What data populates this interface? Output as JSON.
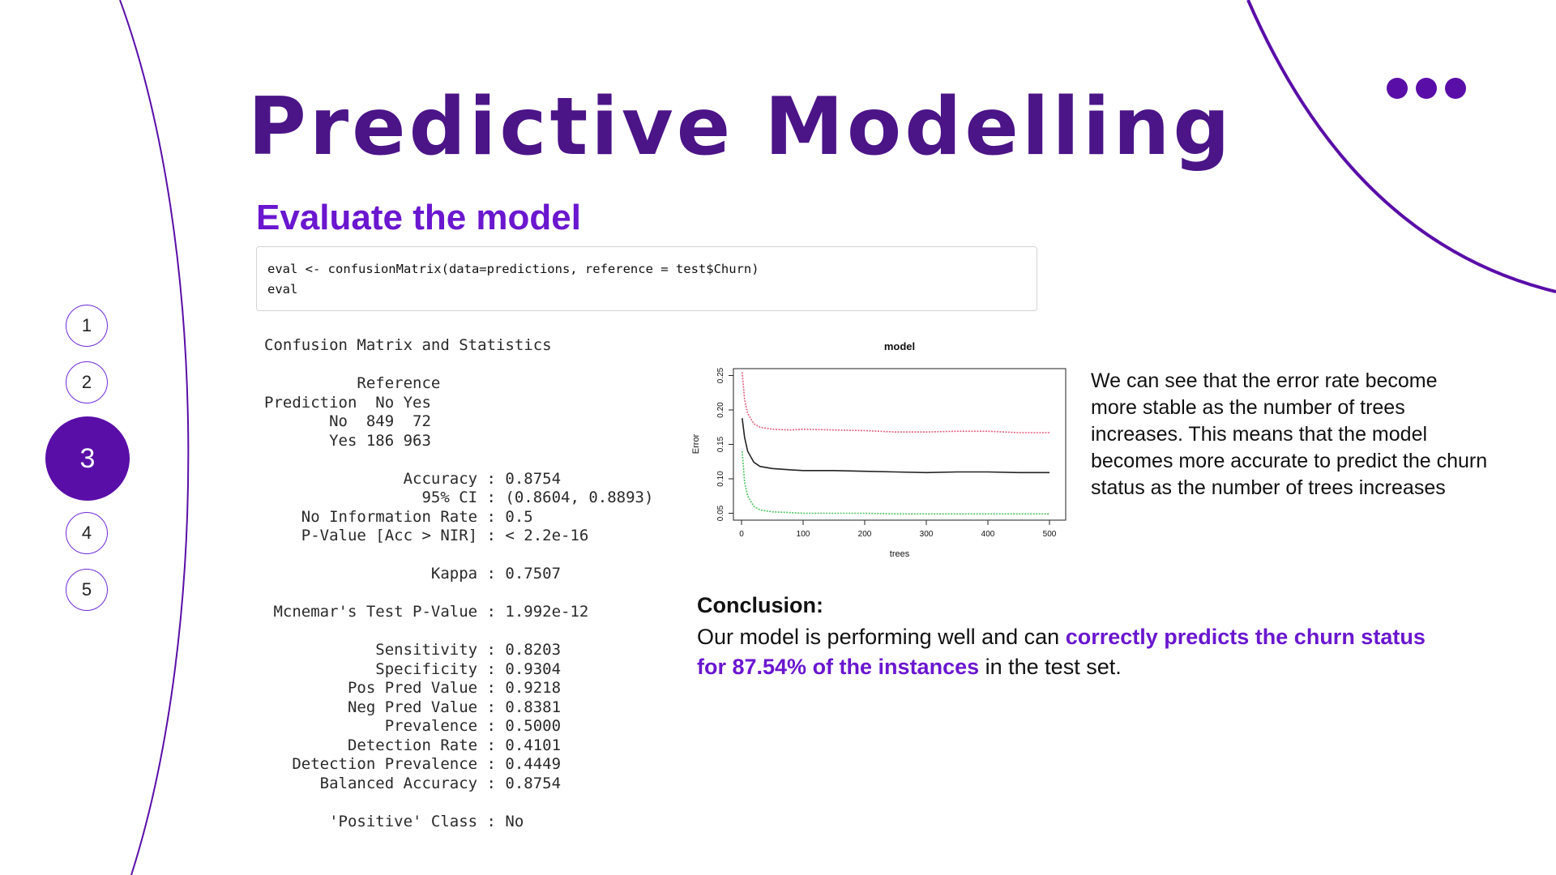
{
  "steps": [
    {
      "label": "1",
      "active": false
    },
    {
      "label": "2",
      "active": false
    },
    {
      "label": "3",
      "active": true
    },
    {
      "label": "4",
      "active": false
    },
    {
      "label": "5",
      "active": false
    }
  ],
  "icons": {
    "more": "ellipsis-icon"
  },
  "colors": {
    "accent": "#5a0ea8",
    "title": "#4b1487",
    "highlight": "#6a17cf"
  },
  "title": "Predictive Modelling",
  "subtitle": "Evaluate the model",
  "code": {
    "line1": "eval <- confusionMatrix(data=predictions, reference = test$Churn)",
    "line2": "eval"
  },
  "r_output": [
    "Confusion Matrix and Statistics",
    "",
    "          Reference",
    "Prediction  No Yes",
    "       No  849  72",
    "       Yes 186 963",
    "",
    "               Accuracy : 0.8754",
    "                 95% CI : (0.8604, 0.8893)",
    "    No Information Rate : 0.5",
    "    P-Value [Acc > NIR] : < 2.2e-16",
    "",
    "                  Kappa : 0.7507",
    "",
    " Mcnemar's Test P-Value : 1.992e-12",
    "",
    "            Sensitivity : 0.8203",
    "            Specificity : 0.9304",
    "         Pos Pred Value : 0.9218",
    "         Neg Pred Value : 0.8381",
    "             Prevalence : 0.5000",
    "         Detection Rate : 0.4101",
    "   Detection Prevalence : 0.4449",
    "      Balanced Accuracy : 0.8754",
    "",
    "       'Positive' Class : No"
  ],
  "chart_data": {
    "type": "line",
    "title": "model",
    "xlabel": "trees",
    "ylabel": "Error",
    "xlim": [
      0,
      500
    ],
    "ylim": [
      0.04,
      0.26
    ],
    "xticks": [
      0,
      100,
      200,
      300,
      400,
      500
    ],
    "yticks": [
      0.05,
      0.1,
      0.15,
      0.2,
      0.25
    ],
    "grid": false,
    "series": [
      {
        "color": "#e0607a",
        "x": [
          1,
          5,
          10,
          20,
          30,
          50,
          80,
          100,
          150,
          200,
          250,
          300,
          350,
          400,
          450,
          500
        ],
        "y": [
          0.255,
          0.215,
          0.195,
          0.18,
          0.175,
          0.172,
          0.171,
          0.172,
          0.171,
          0.17,
          0.168,
          0.168,
          0.169,
          0.169,
          0.167,
          0.167
        ]
      },
      {
        "color": "#222222",
        "x": [
          1,
          5,
          10,
          20,
          30,
          50,
          80,
          100,
          150,
          200,
          250,
          300,
          350,
          400,
          450,
          500
        ],
        "y": [
          0.188,
          0.16,
          0.14,
          0.124,
          0.118,
          0.115,
          0.113,
          0.112,
          0.112,
          0.111,
          0.11,
          0.109,
          0.11,
          0.11,
          0.109,
          0.109
        ]
      },
      {
        "color": "#4fc25f",
        "x": [
          1,
          5,
          10,
          20,
          30,
          50,
          80,
          100,
          150,
          200,
          250,
          300,
          350,
          400,
          450,
          500
        ],
        "y": [
          0.14,
          0.095,
          0.075,
          0.06,
          0.055,
          0.052,
          0.051,
          0.05,
          0.05,
          0.05,
          0.049,
          0.049,
          0.049,
          0.049,
          0.049,
          0.049
        ]
      }
    ]
  },
  "explanation": "We can see that the error rate become more stable as the number of trees increases. This means that the model becomes more accurate to predict the churn status as the number of trees increases",
  "conclusion": {
    "heading": "Conclusion:",
    "before": "Our model is performing well and can ",
    "highlight": "correctly predicts the churn status for 87.54% of the instances",
    "after": " in the test set."
  }
}
